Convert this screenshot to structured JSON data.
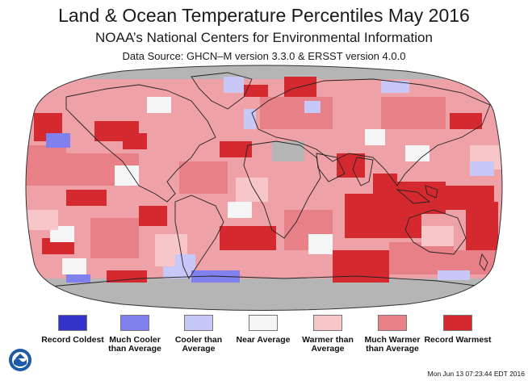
{
  "title": "Land & Ocean Temperature Percentiles May 2016",
  "subtitle": "NOAA’s National Centers for Environmental Information",
  "data_source": "Data Source: GHCN–M version 3.3.0 & ERSST version 4.0.0",
  "legend": [
    {
      "label": "Record Coldest",
      "color": "#3333cc"
    },
    {
      "label": "Much Cooler than Average",
      "color": "#8080ee"
    },
    {
      "label": "Cooler than Average",
      "color": "#c8c8f8"
    },
    {
      "label": "Near Average",
      "color": "#f5f5f5"
    },
    {
      "label": "Warmer than Average",
      "color": "#f7c6c9"
    },
    {
      "label": "Much Warmer than Average",
      "color": "#e88088"
    },
    {
      "label": "Record Warmest",
      "color": "#d42a2f"
    }
  ],
  "map_colors": {
    "nodata": "#b5b5b5",
    "ocean_base": "#eea2a8",
    "outline": "#222222"
  },
  "timestamp": "Mon Jun 13 07:23:44 EDT 2016",
  "logo_icon": "noaa-logo-icon"
}
